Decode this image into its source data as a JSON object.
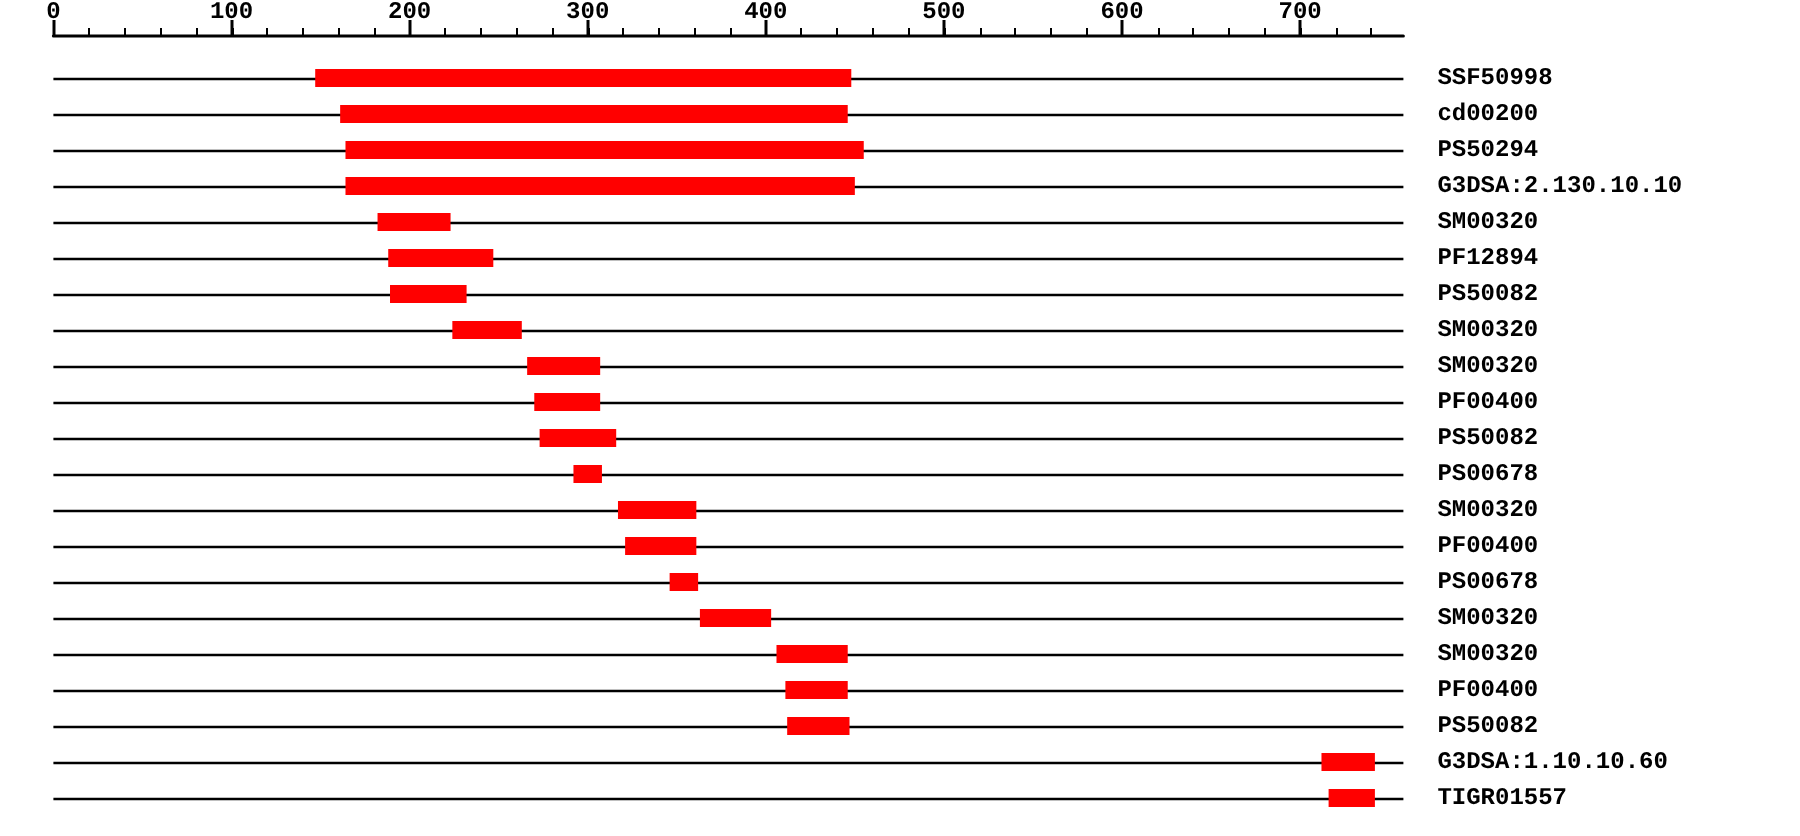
{
  "chart_data": {
    "type": "bar",
    "orientation": "horizontal",
    "color": "#ff0000",
    "grid": "y",
    "categories": [
      "SSF50998",
      "cd00200",
      "PS50294",
      "G3DSA:2.130.10.10",
      "SM00320",
      "PF12894",
      "PS50082",
      "SM00320",
      "SM00320",
      "PF00400",
      "PS50082",
      "PS00678",
      "SM00320",
      "PF00400",
      "PS00678",
      "SM00320",
      "SM00320",
      "PF00400",
      "PS50082",
      "G3DSA:1.10.10.60",
      "TIGR01557"
    ],
    "base": [
      147,
      161,
      164,
      164,
      182,
      188,
      189,
      224,
      266,
      270,
      273,
      292,
      317,
      321,
      346,
      363,
      406,
      411,
      412,
      712,
      716
    ],
    "values": [
      301,
      285,
      291,
      286,
      41,
      59,
      43,
      39,
      41,
      37,
      43,
      16,
      44,
      40,
      16,
      40,
      40,
      35,
      35,
      30,
      26
    ],
    "xlim": [
      0,
      758
    ],
    "xticks": [
      0,
      100,
      200,
      300,
      400,
      500,
      600,
      700
    ]
  }
}
